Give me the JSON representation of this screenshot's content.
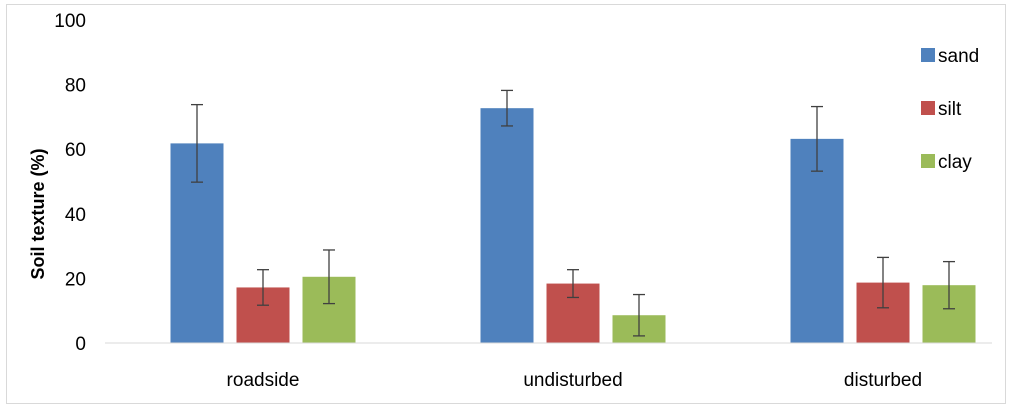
{
  "chart_data": {
    "type": "bar",
    "title": "",
    "xlabel": "",
    "ylabel": "Soil texture (%)",
    "ylim": [
      0,
      100
    ],
    "yticks": [
      0,
      20,
      40,
      60,
      80,
      100
    ],
    "categories": [
      "roadside",
      "undisturbed",
      "disturbed"
    ],
    "series": [
      {
        "name": "sand",
        "color": "#4f81bd",
        "values": [
          61.8,
          72.7,
          63.2
        ],
        "errors": [
          12.0,
          5.5,
          10.0
        ]
      },
      {
        "name": "silt",
        "color": "#c0504d",
        "values": [
          17.2,
          18.4,
          18.7
        ],
        "errors": [
          5.5,
          4.3,
          7.8
        ]
      },
      {
        "name": "clay",
        "color": "#9bbb59",
        "values": [
          20.5,
          8.6,
          17.9
        ],
        "errors": [
          8.3,
          6.4,
          7.3
        ]
      }
    ],
    "grid": false,
    "legend": "right"
  }
}
